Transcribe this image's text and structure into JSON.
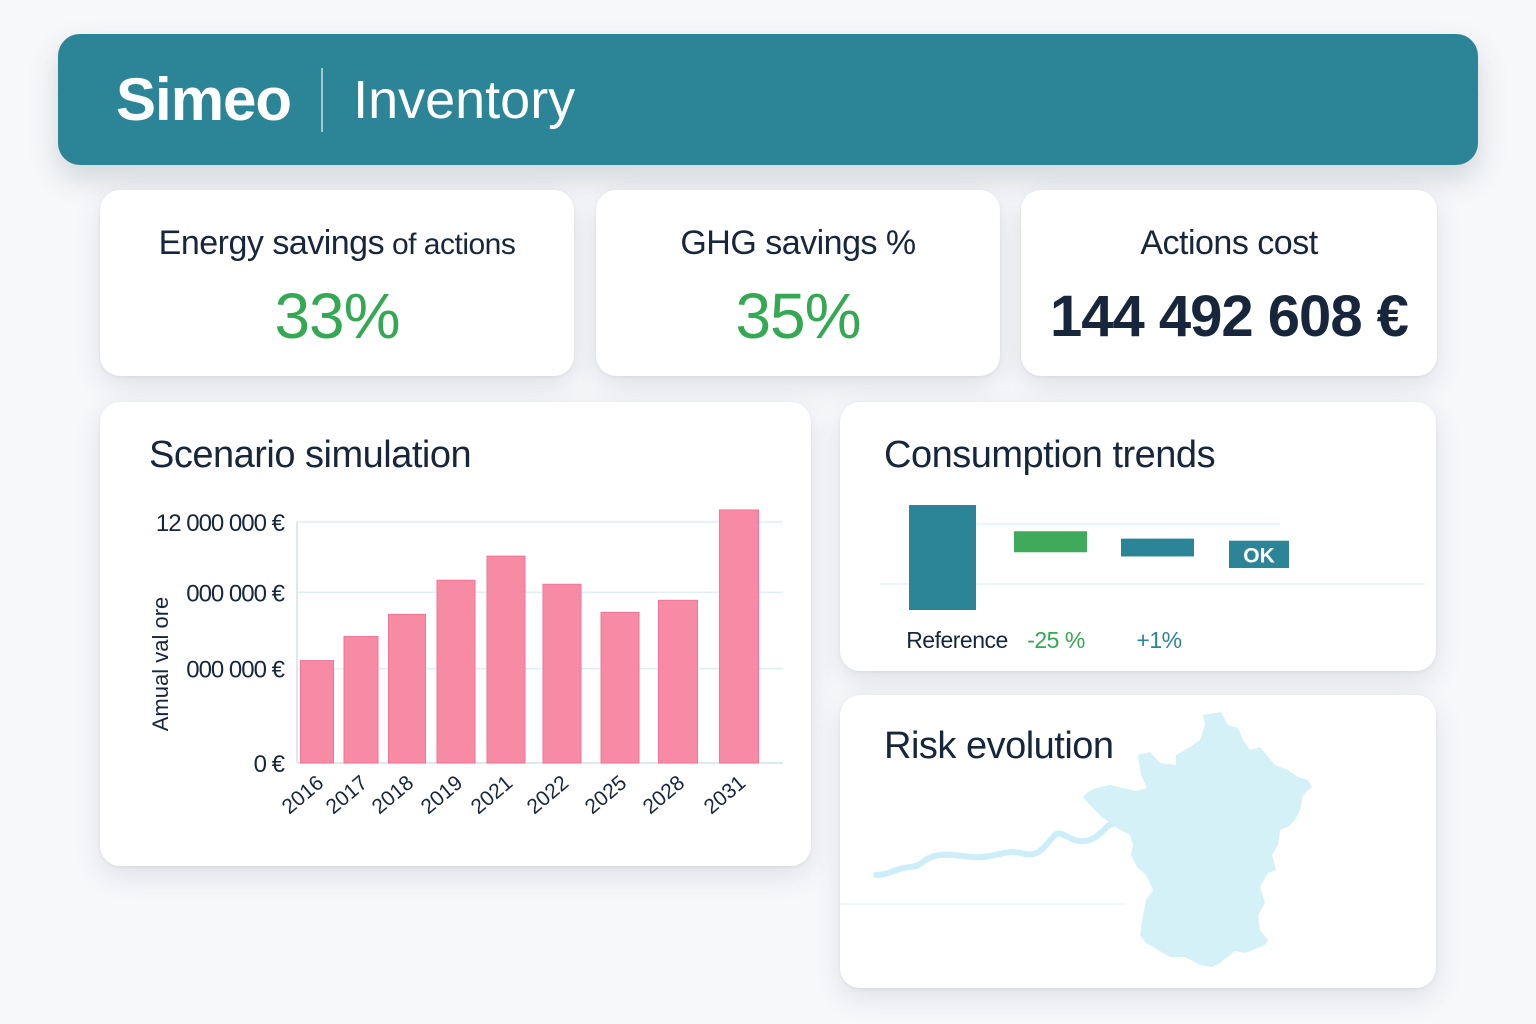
{
  "header": {
    "brand": "Simeo",
    "module": "Inventory",
    "color": "#2b8597"
  },
  "kpis": [
    {
      "label_main": "Energy savings",
      "label_suffix": " of actions",
      "value": "33%",
      "color": "#34a853"
    },
    {
      "label_main": "GHG savings %",
      "label_suffix": "",
      "value": "35%",
      "color": "#34a853"
    },
    {
      "label_main": "Actions cost",
      "label_suffix": "",
      "value": "144 492 608 €",
      "color": "#17263a"
    }
  ],
  "scenario": {
    "title": "Scenario simulation",
    "chart_data": {
      "type": "bar",
      "title": "Scenario simulation",
      "xlabel": "",
      "ylabel": "Amual val ore",
      "categories": [
        "2016",
        "2017",
        "2018",
        "2019",
        "2021",
        "2022",
        "2025",
        "2028",
        "2031"
      ],
      "values": [
        5100000,
        6300000,
        7400000,
        9100000,
        10300000,
        8900000,
        7500000,
        8100000,
        12600000
      ],
      "ylim": [
        0,
        12000000
      ],
      "ytick_values": [
        0,
        4700000,
        8500000,
        12000000
      ],
      "ytick_labels": [
        "0 €",
        " 000 000 €",
        " 000 000 €",
        "12 000 000 €"
      ],
      "grid": true,
      "bar_color": "#f78ba5"
    }
  },
  "consumption": {
    "title": "Consumption trends",
    "chart_data": {
      "type": "bar",
      "subtype": "waterfall",
      "title": "Consumption trends",
      "categories": [
        "Reference",
        "-25 %",
        "+1%",
        "OK"
      ],
      "labels": [
        "Reference",
        "-25 %",
        "+1%",
        ""
      ],
      "bar_inner_labels": [
        "",
        "",
        "",
        "OK"
      ],
      "label_colors": [
        "#17263a",
        "#34a853",
        "#2b8597",
        "#ffffff"
      ],
      "bar_colors": [
        "#2b8597",
        "#3fa95c",
        "#2b8597",
        "#2b8597"
      ],
      "ranges": [
        [
          0,
          100
        ],
        [
          75,
          55
        ],
        [
          68,
          51
        ],
        [
          66,
          40
        ]
      ],
      "grid": true
    }
  },
  "risk": {
    "title": "Risk evolution",
    "map_region": "France",
    "map_color": "#d5f1f8",
    "line_color": "#cdeef8"
  }
}
